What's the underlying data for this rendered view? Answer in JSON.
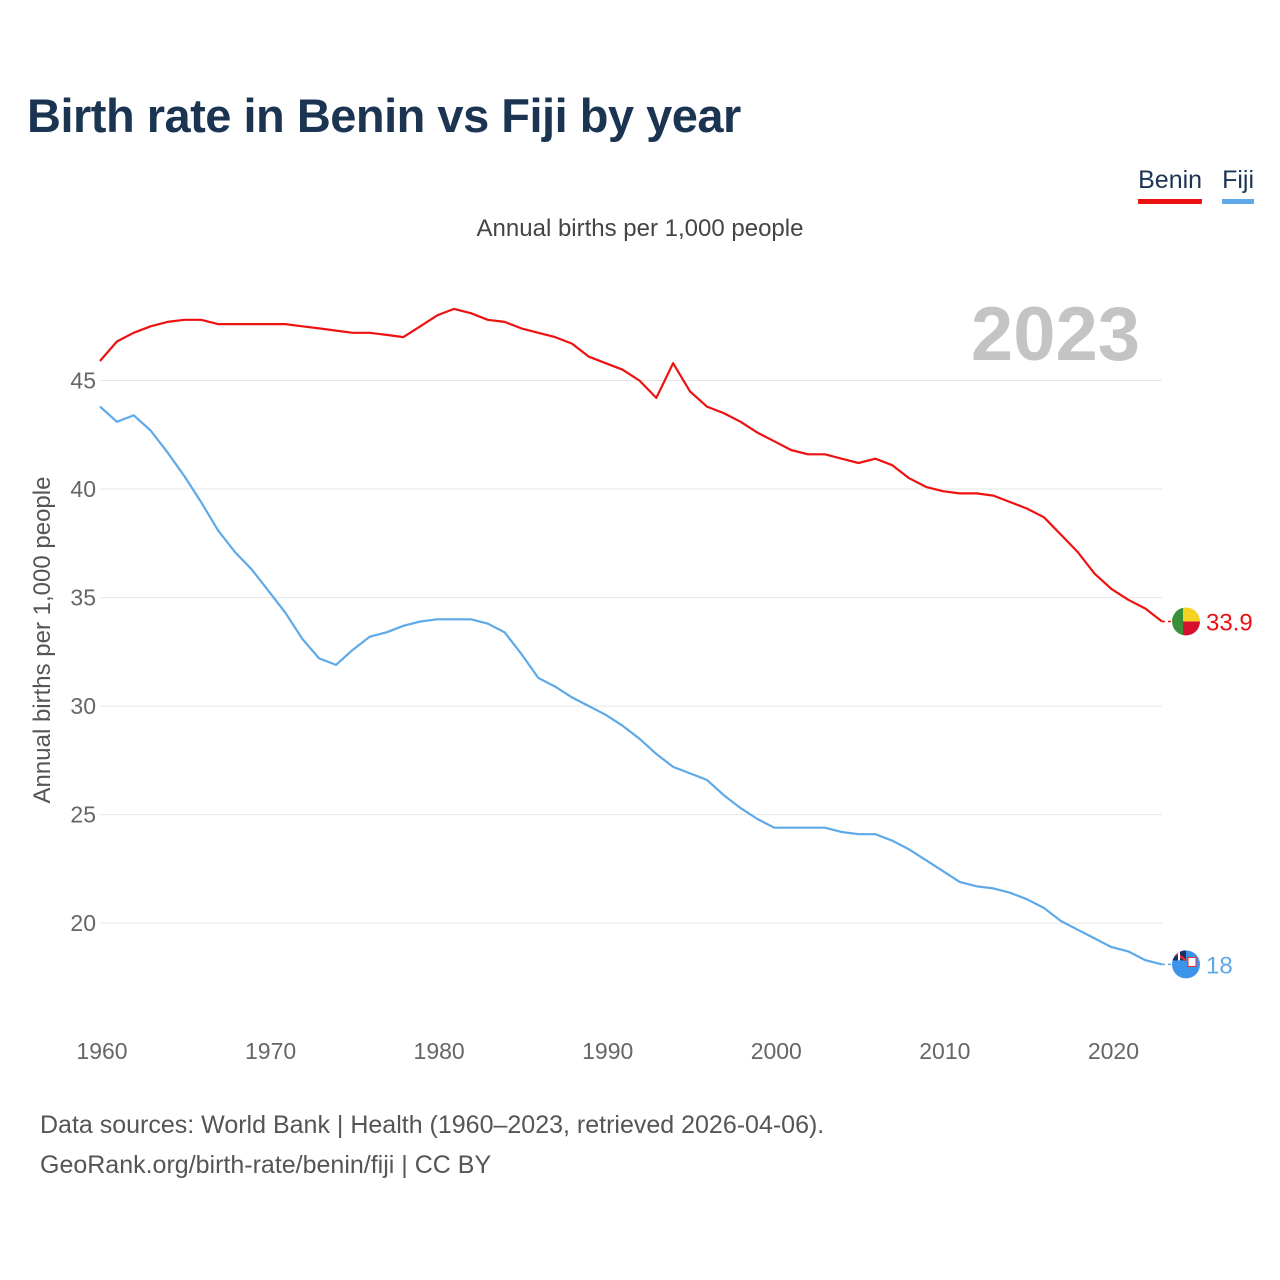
{
  "title": "Birth rate in Benin vs Fiji by year",
  "subtitle": "Annual births per 1,000 people",
  "year_watermark": "2023",
  "legend": [
    {
      "name": "Benin",
      "color": "#ee1111"
    },
    {
      "name": "Fiji",
      "color": "#5ea9e8"
    }
  ],
  "footer": {
    "line1": "Data sources: World Bank | Health (1960–2023, retrieved 2026-04-06).",
    "line2": "GeoRank.org/birth-rate/benin/fiji | CC BY"
  },
  "chart_data": {
    "type": "line",
    "title": "Birth rate in Benin vs Fiji by year",
    "ylabel": "Annual births per 1,000 people",
    "xlabel": "",
    "xlim": [
      1960,
      2023
    ],
    "ylim": [
      16,
      50
    ],
    "x_ticks": [
      1960,
      1970,
      1980,
      1990,
      2000,
      2010,
      2020
    ],
    "y_ticks": [
      20,
      25,
      30,
      35,
      40,
      45
    ],
    "grid": true,
    "legend_position": "top-right",
    "x": [
      1960,
      1961,
      1962,
      1963,
      1964,
      1965,
      1966,
      1967,
      1968,
      1969,
      1970,
      1971,
      1972,
      1973,
      1974,
      1975,
      1976,
      1977,
      1978,
      1979,
      1980,
      1981,
      1982,
      1983,
      1984,
      1985,
      1986,
      1987,
      1988,
      1989,
      1990,
      1991,
      1992,
      1993,
      1994,
      1995,
      1996,
      1997,
      1998,
      1999,
      2000,
      2001,
      2002,
      2003,
      2004,
      2005,
      2006,
      2007,
      2008,
      2009,
      2010,
      2011,
      2012,
      2013,
      2014,
      2015,
      2016,
      2017,
      2018,
      2019,
      2020,
      2021,
      2022,
      2023
    ],
    "series": [
      {
        "name": "Benin",
        "color": "#ee1111",
        "end_label": "33.9",
        "values": [
          45.9,
          46.8,
          47.2,
          47.5,
          47.7,
          47.8,
          47.8,
          47.6,
          47.6,
          47.6,
          47.6,
          47.6,
          47.5,
          47.4,
          47.3,
          47.2,
          47.2,
          47.1,
          47.0,
          47.5,
          48.0,
          48.3,
          48.1,
          47.8,
          47.7,
          47.4,
          47.2,
          47.0,
          46.7,
          46.1,
          45.8,
          45.5,
          45.0,
          44.2,
          45.8,
          44.5,
          43.8,
          43.5,
          43.1,
          42.6,
          42.2,
          41.8,
          41.6,
          41.6,
          41.4,
          41.2,
          41.4,
          41.1,
          40.5,
          40.1,
          39.9,
          39.8,
          39.8,
          39.7,
          39.4,
          39.1,
          38.7,
          37.9,
          37.1,
          36.1,
          35.4,
          34.9,
          34.5,
          33.9
        ]
      },
      {
        "name": "Fiji",
        "color": "#5ea9e8",
        "end_label": "18",
        "values": [
          43.8,
          43.1,
          43.4,
          42.7,
          41.7,
          40.6,
          39.4,
          38.1,
          37.1,
          36.3,
          35.3,
          34.3,
          33.1,
          32.2,
          31.9,
          32.6,
          33.2,
          33.4,
          33.7,
          33.9,
          34.0,
          34.0,
          34.0,
          33.8,
          33.4,
          32.4,
          31.3,
          30.9,
          30.4,
          30.0,
          29.6,
          29.1,
          28.5,
          27.8,
          27.2,
          26.9,
          26.6,
          25.9,
          25.3,
          24.8,
          24.4,
          24.4,
          24.4,
          24.4,
          24.2,
          24.1,
          24.1,
          23.8,
          23.4,
          22.9,
          22.4,
          21.9,
          21.7,
          21.6,
          21.4,
          21.1,
          20.7,
          20.1,
          19.7,
          19.3,
          18.9,
          18.7,
          18.3,
          18.1
        ]
      }
    ]
  }
}
